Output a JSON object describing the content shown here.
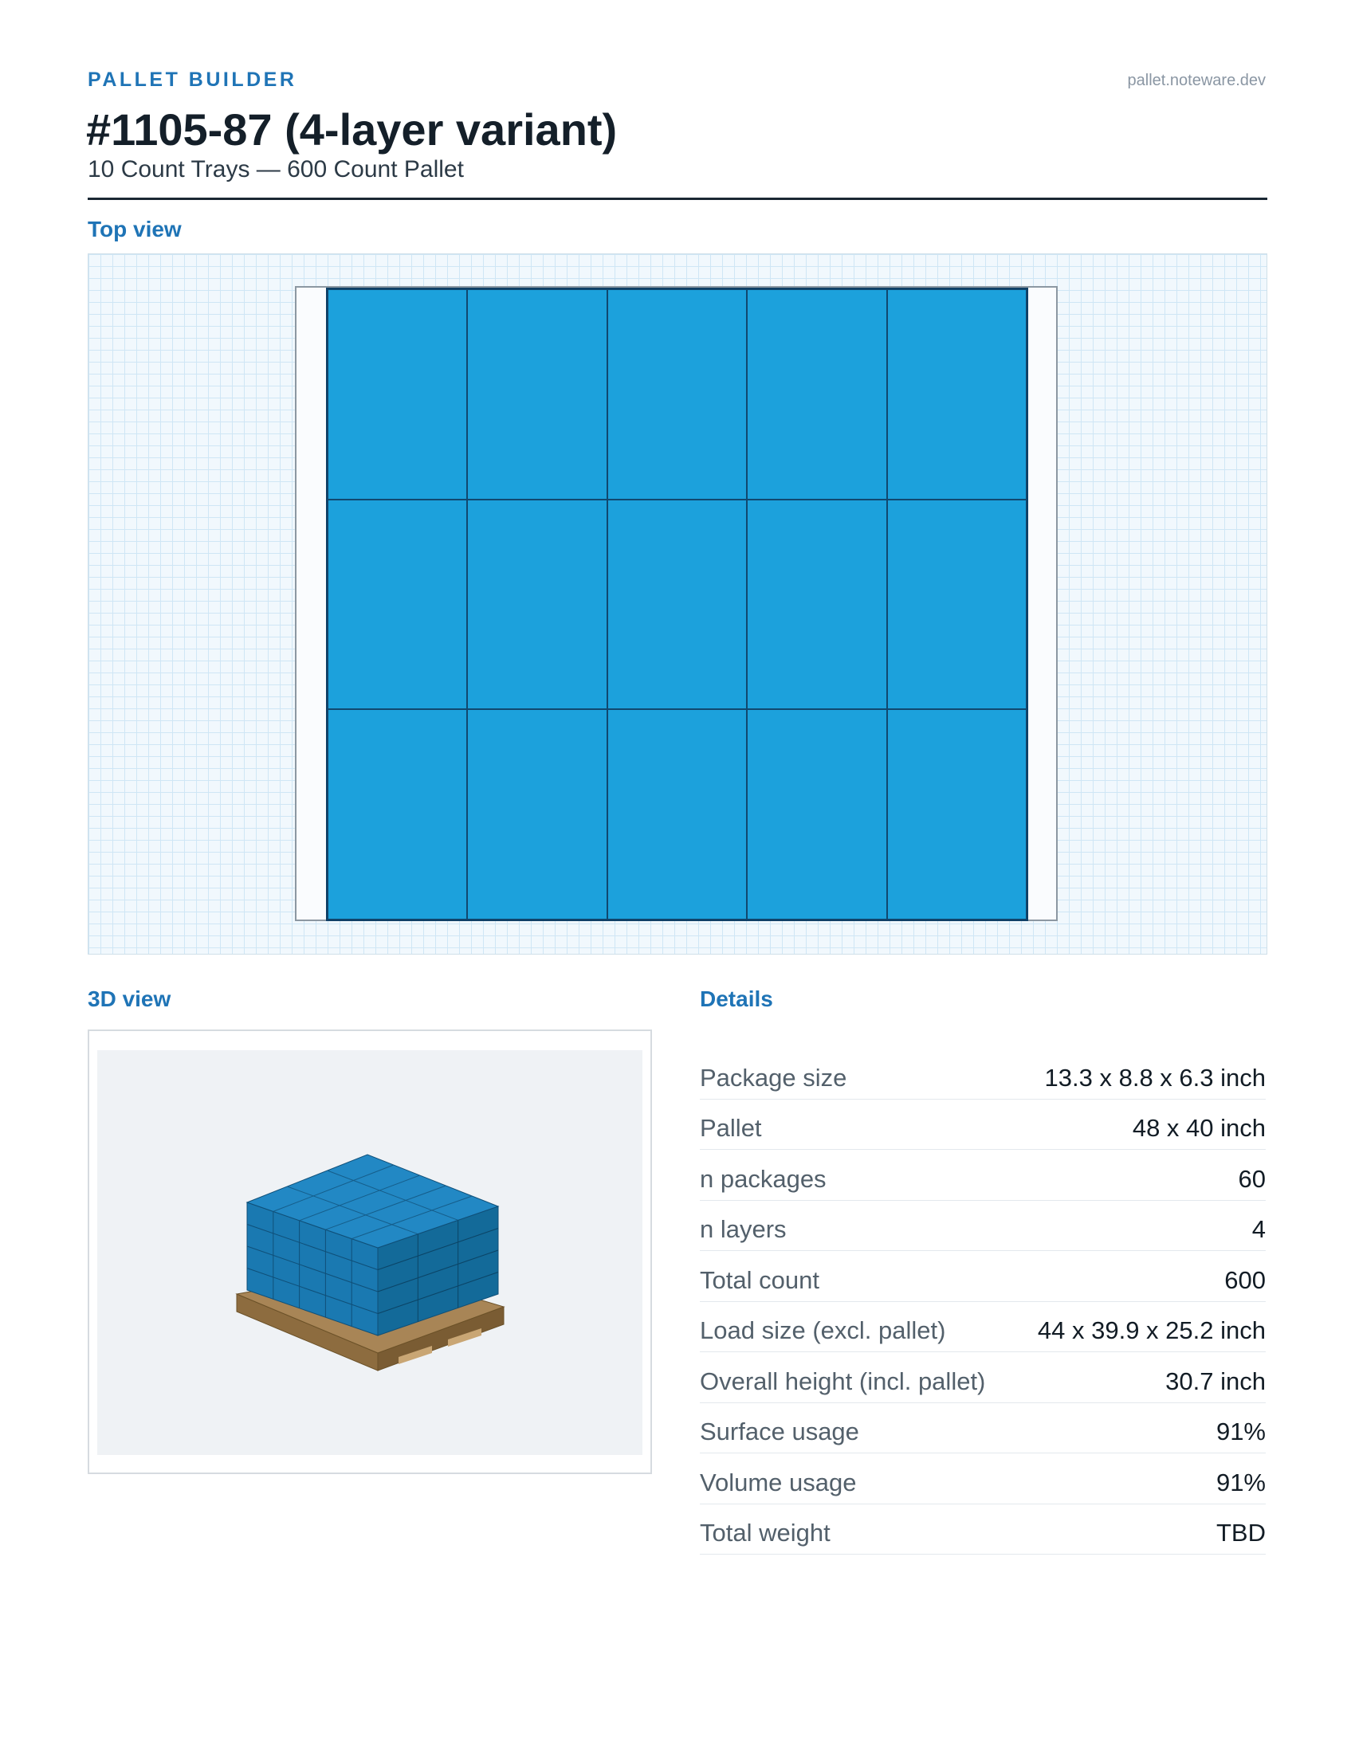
{
  "header": {
    "brand": "PALLET BUILDER",
    "site": "pallet.noteware.dev",
    "title": "#1105-87 (4-layer variant)",
    "subtitle": "10 Count Trays — 600 Count Pallet"
  },
  "sections": {
    "top_view": "Top view",
    "view_3d": "3D view",
    "details": "Details"
  },
  "top_view": {
    "columns": 5,
    "rows": 3,
    "package_color": "#1ca1dc",
    "package_edge_color": "#11486f"
  },
  "details": [
    {
      "label": "Package size",
      "value": "13.3 x 8.8 x 6.3 inch"
    },
    {
      "label": "Pallet",
      "value": "48 x 40 inch"
    },
    {
      "label": "n packages",
      "value": "60"
    },
    {
      "label": "n layers",
      "value": "4"
    },
    {
      "label": "Total count",
      "value": "600"
    },
    {
      "label": "Load size (excl. pallet)",
      "value": "44 x 39.9 x 25.2 inch"
    },
    {
      "label": "Overall height (incl. pallet)",
      "value": "30.7 inch"
    },
    {
      "label": "Surface usage",
      "value": "91%"
    },
    {
      "label": "Volume usage",
      "value": "91%"
    },
    {
      "label": "Total weight",
      "value": "TBD"
    }
  ],
  "colors": {
    "accent": "#1f74b6",
    "box_top": "#2288c4",
    "box_left": "#1a79b1",
    "box_right": "#136a99",
    "pallet_wood": "#a88556"
  }
}
